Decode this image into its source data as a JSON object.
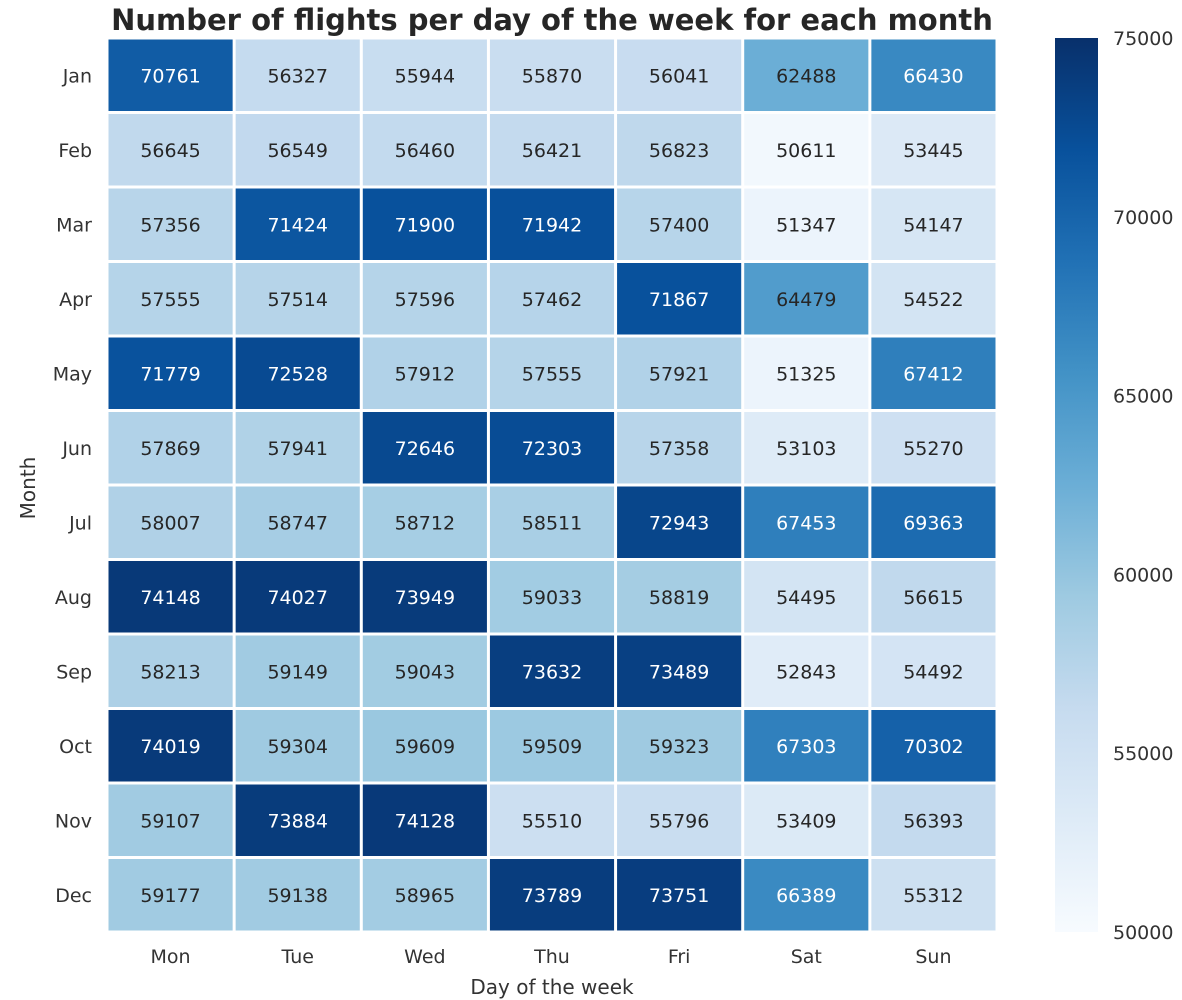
{
  "chart_data": {
    "type": "heatmap",
    "title": "Number of flights per day of the week for each month",
    "xlabel": "Day of the week",
    "ylabel": "Month",
    "x_categories": [
      "Mon",
      "Tue",
      "Wed",
      "Thu",
      "Fri",
      "Sat",
      "Sun"
    ],
    "y_categories": [
      "Jan",
      "Feb",
      "Mar",
      "Apr",
      "May",
      "Jun",
      "Jul",
      "Aug",
      "Sep",
      "Oct",
      "Nov",
      "Dec"
    ],
    "values": [
      [
        70761,
        56327,
        55944,
        55870,
        56041,
        62488,
        66430
      ],
      [
        56645,
        56549,
        56460,
        56421,
        56823,
        50611,
        53445
      ],
      [
        57356,
        71424,
        71900,
        71942,
        57400,
        51347,
        54147
      ],
      [
        57555,
        57514,
        57596,
        57462,
        71867,
        64479,
        54522
      ],
      [
        71779,
        72528,
        57912,
        57555,
        57921,
        51325,
        67412
      ],
      [
        57869,
        57941,
        72646,
        72303,
        57358,
        53103,
        55270
      ],
      [
        58007,
        58747,
        58712,
        58511,
        72943,
        67453,
        69363
      ],
      [
        74148,
        74027,
        73949,
        59033,
        58819,
        54495,
        56615
      ],
      [
        58213,
        59149,
        59043,
        73632,
        73489,
        52843,
        54492
      ],
      [
        74019,
        59304,
        59609,
        59509,
        59323,
        67303,
        70302
      ],
      [
        59107,
        73884,
        74128,
        55510,
        55796,
        53409,
        56393
      ],
      [
        59177,
        59138,
        58965,
        73789,
        73751,
        66389,
        55312
      ]
    ],
    "colorbar": {
      "min": 50000,
      "max": 75000,
      "ticks": [
        50000,
        55000,
        60000,
        65000,
        70000,
        75000
      ],
      "colormap": "Blues"
    },
    "colormap_stops": [
      "#f7fbff",
      "#deebf7",
      "#c6dbef",
      "#9ecae1",
      "#6baed6",
      "#4292c6",
      "#2171b5",
      "#08519c",
      "#08306b"
    ],
    "cell_border_color": "#ffffff",
    "label_light_color": "#ffffff",
    "label_dark_color": "#262626"
  }
}
